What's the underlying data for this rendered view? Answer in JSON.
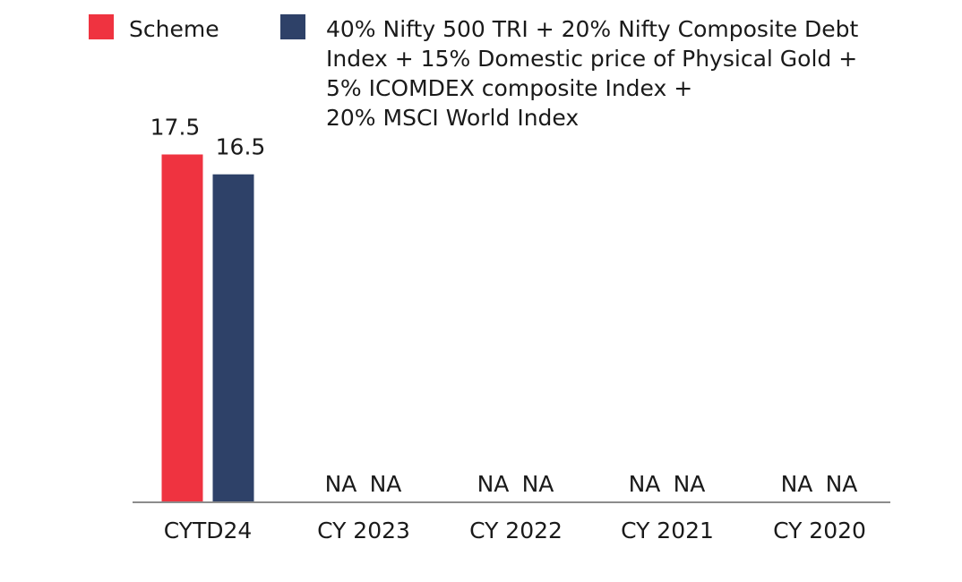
{
  "chart_data": {
    "type": "bar",
    "categories": [
      "CYTD24",
      "CY 2023",
      "CY 2022",
      "CY 2021",
      "CY 2020"
    ],
    "series": [
      {
        "name": "Scheme",
        "color": "#ef3340",
        "values": [
          17.5,
          null,
          null,
          null,
          null
        ],
        "labels": [
          "17.5",
          "NA",
          "NA",
          "NA",
          "NA"
        ]
      },
      {
        "name": "40% Nifty 500 TRI + 20% Nifty Composite Debt Index + 15% Domestic price of Physical Gold + 5% ICOMDEX composite Index + 20% MSCI World Index",
        "legend_lines": [
          "40% Nifty 500 TRI + 20% Nifty Composite Debt",
          "Index + 15% Domestic price of Physical Gold +",
          "5% ICOMDEX composite Index +",
          "20% MSCI World Index"
        ],
        "color": "#2e4168",
        "values": [
          16.5,
          null,
          null,
          null,
          null
        ],
        "labels": [
          "16.5",
          "NA",
          "NA",
          "NA",
          "NA"
        ]
      }
    ],
    "ylim": [
      0,
      20
    ],
    "grid": false,
    "legend_position": "top",
    "title": "",
    "xlabel": "",
    "ylabel": ""
  },
  "style": {
    "axis_color": "#8c8c8c"
  }
}
